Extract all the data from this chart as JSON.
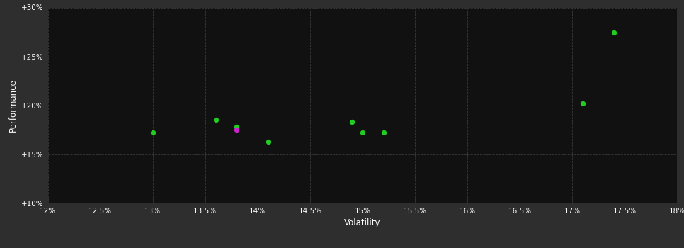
{
  "xlabel": "Volatility",
  "ylabel": "Performance",
  "fig_bg_color": "#2e2e2e",
  "plot_bg_color": "#111111",
  "grid_color": "#3a3a3a",
  "text_color": "#ffffff",
  "xlim": [
    0.12,
    0.18
  ],
  "ylim": [
    0.1,
    0.3
  ],
  "xticks": [
    0.12,
    0.125,
    0.13,
    0.135,
    0.14,
    0.145,
    0.15,
    0.155,
    0.16,
    0.165,
    0.17,
    0.175,
    0.18
  ],
  "yticks": [
    0.1,
    0.15,
    0.2,
    0.25,
    0.3
  ],
  "green_points": [
    [
      0.13,
      0.172
    ],
    [
      0.136,
      0.185
    ],
    [
      0.138,
      0.178
    ],
    [
      0.141,
      0.163
    ],
    [
      0.149,
      0.183
    ],
    [
      0.15,
      0.172
    ],
    [
      0.152,
      0.172
    ],
    [
      0.171,
      0.202
    ],
    [
      0.174,
      0.274
    ]
  ],
  "magenta_points": [
    [
      0.138,
      0.175
    ]
  ],
  "green_color": "#22cc22",
  "magenta_color": "#cc22cc",
  "marker_size": 28
}
